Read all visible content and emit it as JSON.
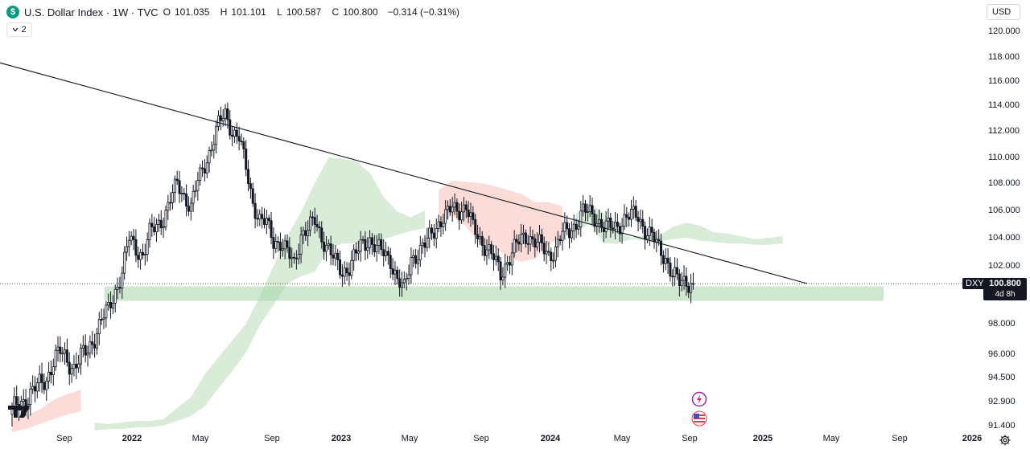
{
  "legend": {
    "logo_letter": "$",
    "title": "U.S. Dollar Index · 1W · TVC",
    "open_label": "O",
    "open": "101.035",
    "high_label": "H",
    "high": "101.101",
    "low_label": "L",
    "low": "100.587",
    "close_label": "C",
    "close": "100.800",
    "change": "−0.314 (−0.31%)"
  },
  "indicator_toggle": {
    "icon": "chevron-down-icon",
    "count": "2"
  },
  "currency": "USD",
  "symbol_tag": "DXY",
  "last_price": {
    "price": "100.800",
    "countdown": "4d 8h"
  },
  "colors": {
    "up": "#089981",
    "down": "#f23645",
    "candle": "#131722",
    "cloud_bull": "#d8ecd8",
    "cloud_bear": "#fbdcd8",
    "support_zone": "#a5d6a7",
    "trendline": "#131722",
    "logo": "#089981"
  },
  "chart_data": {
    "type": "candlestick",
    "timeframe": "1W",
    "price_scale": [
      "120.000",
      "118.000",
      "116.000",
      "114.000",
      "112.000",
      "110.000",
      "108.000",
      "106.000",
      "104.000",
      "102.000",
      "98.000",
      "96.000",
      "94.500",
      "92.900",
      "91.400"
    ],
    "time_scale": [
      {
        "label": "Sep",
        "bold": false
      },
      {
        "label": "2022",
        "bold": true
      },
      {
        "label": "May",
        "bold": false
      },
      {
        "label": "Sep",
        "bold": false
      },
      {
        "label": "2023",
        "bold": true
      },
      {
        "label": "May",
        "bold": false
      },
      {
        "label": "Sep",
        "bold": false
      },
      {
        "label": "2024",
        "bold": true
      },
      {
        "label": "May",
        "bold": false
      },
      {
        "label": "Sep",
        "bold": false
      },
      {
        "label": "2025",
        "bold": true
      },
      {
        "label": "May",
        "bold": false
      },
      {
        "label": "Sep",
        "bold": false
      },
      {
        "label": "2026",
        "bold": true
      }
    ],
    "close_path": [
      [
        0,
        92.3
      ],
      [
        3,
        92.7
      ],
      [
        6,
        93.1
      ],
      [
        9,
        93.6
      ],
      [
        12,
        94.0
      ],
      [
        15,
        94.4
      ],
      [
        18,
        95.6
      ],
      [
        21,
        96.1
      ],
      [
        24,
        95.6
      ],
      [
        27,
        95.2
      ],
      [
        30,
        95.8
      ],
      [
        33,
        96.2
      ],
      [
        36,
        97.2
      ],
      [
        39,
        98.3
      ],
      [
        42,
        98.9
      ],
      [
        45,
        100.3
      ],
      [
        48,
        101.6
      ],
      [
        51,
        103.9
      ],
      [
        54,
        103.2
      ],
      [
        57,
        102.8
      ],
      [
        60,
        104.3
      ],
      [
        63,
        104.8
      ],
      [
        66,
        105.5
      ],
      [
        69,
        106.8
      ],
      [
        72,
        107.9
      ],
      [
        75,
        107.1
      ],
      [
        78,
        106.3
      ],
      [
        81,
        108.1
      ],
      [
        84,
        109.4
      ],
      [
        87,
        110.9
      ],
      [
        90,
        112.5
      ],
      [
        93,
        113.3
      ],
      [
        96,
        112.0
      ],
      [
        99,
        111.5
      ],
      [
        102,
        109.1
      ],
      [
        105,
        106.6
      ],
      [
        108,
        105.3
      ],
      [
        111,
        105.0
      ],
      [
        114,
        103.8
      ],
      [
        117,
        103.7
      ],
      [
        120,
        102.9
      ],
      [
        123,
        102.1
      ],
      [
        126,
        104.3
      ],
      [
        129,
        104.6
      ],
      [
        132,
        105.2
      ],
      [
        135,
        104.1
      ],
      [
        138,
        103.2
      ],
      [
        141,
        102.2
      ],
      [
        144,
        101.6
      ],
      [
        147,
        102.0
      ],
      [
        150,
        102.8
      ],
      [
        153,
        103.6
      ],
      [
        156,
        103.9
      ],
      [
        159,
        103.2
      ],
      [
        162,
        102.9
      ],
      [
        165,
        102.5
      ],
      [
        168,
        101.0
      ],
      [
        171,
        100.3
      ],
      [
        174,
        102.6
      ],
      [
        177,
        102.9
      ],
      [
        180,
        103.4
      ],
      [
        183,
        104.4
      ],
      [
        186,
        105.1
      ],
      [
        189,
        105.5
      ],
      [
        192,
        106.2
      ],
      [
        195,
        106.1
      ],
      [
        198,
        106.2
      ],
      [
        201,
        104.7
      ],
      [
        204,
        103.9
      ],
      [
        207,
        103.3
      ],
      [
        210,
        102.5
      ],
      [
        213,
        101.4
      ],
      [
        216,
        102.4
      ],
      [
        219,
        103.2
      ],
      [
        222,
        103.9
      ],
      [
        225,
        104.2
      ],
      [
        228,
        103.7
      ],
      [
        231,
        103.3
      ],
      [
        234,
        102.8
      ],
      [
        237,
        103.2
      ],
      [
        240,
        104.3
      ],
      [
        243,
        104.5
      ],
      [
        246,
        105.1
      ],
      [
        249,
        105.9
      ],
      [
        252,
        105.8
      ],
      [
        255,
        105.4
      ],
      [
        258,
        104.8
      ],
      [
        261,
        104.7
      ],
      [
        264,
        104.9
      ],
      [
        267,
        105.4
      ],
      [
        270,
        105.6
      ],
      [
        273,
        105.6
      ],
      [
        276,
        104.6
      ],
      [
        279,
        104.1
      ],
      [
        282,
        103.2
      ],
      [
        285,
        102.6
      ],
      [
        288,
        101.4
      ],
      [
        291,
        100.8
      ],
      [
        294,
        101.0
      ],
      [
        297,
        100.8
      ]
    ],
    "last_close": 100.8,
    "trendline": [
      {
        "x": [
          -33.0,
          118.9
        ]
      },
      {
        "x": [
          346.7,
          100.8
        ]
      }
    ],
    "support_zone": [
      100.6,
      99.6
    ],
    "cloud": [
      [
        0,
        91.8,
        91.0
      ],
      [
        6,
        92.0,
        91.2
      ],
      [
        12,
        92.4,
        91.5
      ],
      [
        18,
        93.0,
        91.8
      ],
      [
        24,
        93.4,
        92.1
      ],
      [
        30,
        93.7,
        92.3
      ],
      [
        36,
        91.6,
        91.1
      ],
      [
        42,
        91.5,
        91.2
      ],
      [
        48,
        91.6,
        91.2
      ],
      [
        54,
        91.7,
        91.3
      ],
      [
        60,
        91.7,
        91.3
      ],
      [
        66,
        91.8,
        91.4
      ],
      [
        72,
        92.5,
        91.7
      ],
      [
        78,
        93.2,
        92.0
      ],
      [
        84,
        94.7,
        92.6
      ],
      [
        90,
        95.8,
        93.8
      ],
      [
        96,
        96.9,
        94.9
      ],
      [
        102,
        98.0,
        96.1
      ],
      [
        108,
        99.9,
        97.9
      ],
      [
        114,
        102.0,
        99.3
      ],
      [
        120,
        104.1,
        100.8
      ],
      [
        126,
        105.9,
        101.3
      ],
      [
        132,
        108.0,
        101.6
      ],
      [
        138,
        110.0,
        103.2
      ],
      [
        144,
        109.9,
        103.6
      ],
      [
        150,
        109.7,
        103.6
      ],
      [
        156,
        108.8,
        103.6
      ],
      [
        162,
        107.0,
        103.9
      ],
      [
        168,
        105.9,
        104.2
      ],
      [
        174,
        105.5,
        104.5
      ],
      [
        180,
        106.0,
        104.7
      ],
      [
        186,
        107.5,
        105.0
      ],
      [
        192,
        108.2,
        105.6
      ],
      [
        198,
        108.1,
        104.8
      ],
      [
        204,
        108.0,
        103.6
      ],
      [
        210,
        107.8,
        103.4
      ],
      [
        216,
        107.5,
        102.6
      ],
      [
        222,
        107.2,
        102.3
      ],
      [
        228,
        106.6,
        102.5
      ],
      [
        234,
        106.6,
        103.6
      ],
      [
        240,
        106.3,
        104.0
      ],
      [
        246,
        105.8,
        104.5
      ],
      [
        252,
        106.5,
        105.0
      ],
      [
        258,
        105.8,
        103.6
      ],
      [
        264,
        104.4,
        103.6
      ],
      [
        270,
        104.0,
        103.9
      ],
      [
        276,
        104.2,
        103.8
      ],
      [
        282,
        104.1,
        103.7
      ],
      [
        288,
        104.8,
        103.9
      ],
      [
        294,
        105.1,
        104.0
      ],
      [
        300,
        104.9,
        103.8
      ],
      [
        306,
        104.4,
        103.7
      ],
      [
        312,
        104.3,
        103.6
      ],
      [
        318,
        104.1,
        103.6
      ],
      [
        324,
        103.9,
        103.5
      ],
      [
        330,
        104.0,
        103.5
      ],
      [
        336,
        104.1,
        103.6
      ]
    ]
  }
}
